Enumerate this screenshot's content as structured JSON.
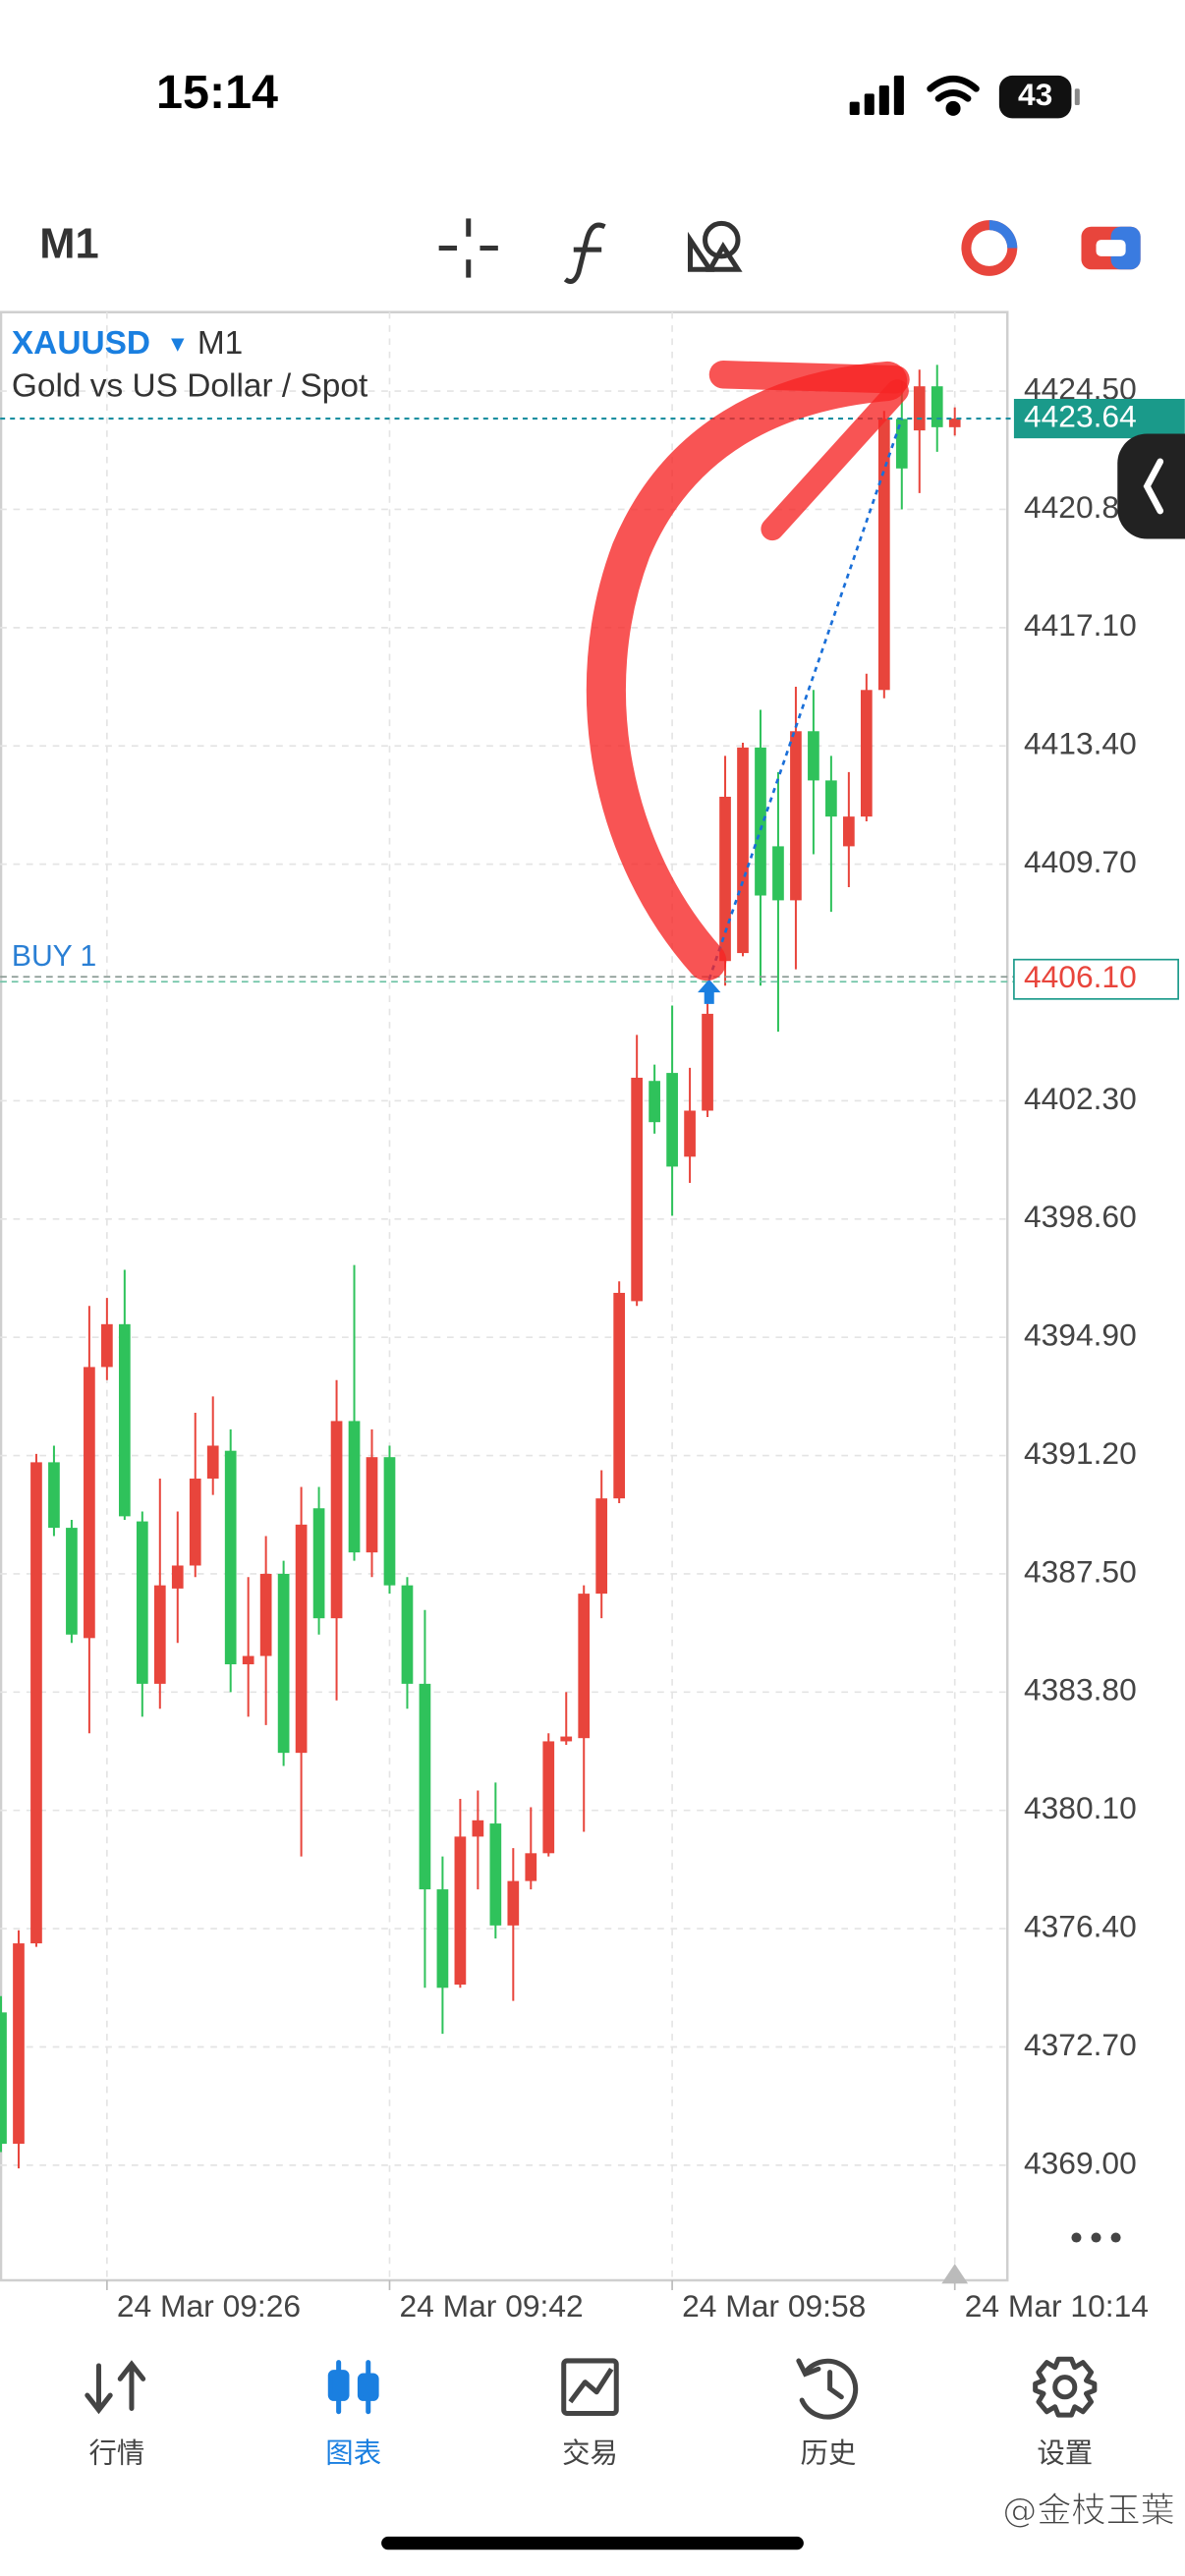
{
  "status_bar": {
    "time": "15:14",
    "battery": "43"
  },
  "toolbar": {
    "timeframe": "M1"
  },
  "chart_data": {
    "type": "candlestick",
    "symbol": "XAUUSD",
    "timeframe": "M1",
    "description": "Gold vs US Dollar / Spot",
    "categories": [
      null,
      null,
      null,
      null,
      null,
      null,
      "24 Mar 09:26",
      null,
      null,
      null,
      null,
      null,
      null,
      null,
      null,
      null,
      null,
      null,
      null,
      null,
      null,
      null,
      "24 Mar 09:42",
      null,
      null,
      null,
      null,
      null,
      null,
      null,
      null,
      null,
      null,
      null,
      null,
      null,
      null,
      null,
      "24 Mar 09:58",
      null,
      null,
      null,
      null,
      null,
      null,
      null,
      null,
      null,
      null,
      null,
      null,
      null,
      null,
      null,
      "24 Mar 10:14"
    ],
    "open": [
      4373.78,
      4369.67,
      4375.94,
      4390.99,
      4388.94,
      4385.49,
      4393.97,
      4395.31,
      4389.14,
      4384.06,
      4387.04,
      4387.76,
      4390.48,
      4391.35,
      4384.67,
      4384.93,
      4387.5,
      4381.9,
      4389.55,
      4386.11,
      4392.28,
      4388.17,
      4391.15,
      4387.14,
      4384.06,
      4377.63,
      4374.65,
      4379.28,
      4379.69,
      4376.5,
      4377.89,
      4378.76,
      4382.26,
      4382.36,
      4386.88,
      4389.86,
      4396.03,
      4402.92,
      4403.17,
      4400.55,
      4401.99,
      4406.67,
      4406.92,
      4413.35,
      4410.26,
      4408.57,
      4413.86,
      4412.32,
      4410.26,
      4411.19,
      4415.15,
      4423.63,
      4423.27,
      4424.65,
      4423.37
    ],
    "high": [
      4374.29,
      4376.35,
      4391.25,
      4391.51,
      4389.19,
      4395.88,
      4396.13,
      4397.01,
      4389.45,
      4390.48,
      4389.45,
      4392.54,
      4393.05,
      4392.02,
      4387.4,
      4388.68,
      4387.91,
      4390.22,
      4390.22,
      4393.56,
      4397.16,
      4392.02,
      4391.51,
      4387.4,
      4386.37,
      4378.66,
      4380.46,
      4380.72,
      4380.97,
      4378.92,
      4380.2,
      4382.51,
      4383.8,
      4387.14,
      4390.74,
      4396.65,
      4404.36,
      4403.43,
      4405.28,
      4403.33,
      4405.64,
      4413.09,
      4413.5,
      4414.53,
      4412.58,
      4415.25,
      4415.15,
      4413.09,
      4412.58,
      4415.66,
      4423.88,
      4424.81,
      4425.17,
      4425.32,
      4423.99
    ],
    "low": [
      4369.41,
      4368.9,
      4375.83,
      4388.68,
      4385.34,
      4382.51,
      4393.56,
      4389.19,
      4383.03,
      4383.28,
      4385.34,
      4387.4,
      4389.97,
      4383.8,
      4383.03,
      4382.77,
      4381.49,
      4378.66,
      4385.6,
      4383.54,
      4387.91,
      4387.4,
      4386.88,
      4383.28,
      4374.55,
      4373.11,
      4374.55,
      4377.63,
      4376.09,
      4374.14,
      4377.63,
      4378.66,
      4382.15,
      4379.43,
      4386.11,
      4389.71,
      4395.88,
      4401.27,
      4398.7,
      4399.73,
      4401.79,
      4405.9,
      4406.82,
      4405.9,
      4404.46,
      4406.41,
      4410.01,
      4408.21,
      4408.98,
      4411.04,
      4414.89,
      4420.8,
      4421.31,
      4422.6,
      4423.11
    ],
    "close": [
      4369.67,
      4375.94,
      4390.99,
      4388.94,
      4385.6,
      4393.97,
      4395.31,
      4389.3,
      4384.06,
      4387.14,
      4387.76,
      4390.48,
      4391.51,
      4384.67,
      4384.93,
      4387.5,
      4381.9,
      4389.04,
      4386.11,
      4392.28,
      4388.17,
      4391.15,
      4387.14,
      4384.06,
      4377.63,
      4374.55,
      4379.28,
      4379.79,
      4376.5,
      4377.89,
      4378.76,
      4382.26,
      4382.41,
      4386.88,
      4389.86,
      4396.29,
      4403.02,
      4401.63,
      4400.24,
      4401.99,
      4405.02,
      4411.81,
      4413.35,
      4408.72,
      4408.57,
      4413.86,
      4412.32,
      4411.19,
      4411.19,
      4415.15,
      4423.63,
      4422.08,
      4424.65,
      4423.37,
      4423.64
    ],
    "up_color": "#e8453c",
    "down_color": "#2fc25b",
    "ylim": [
      4365.4,
      4426.97
    ],
    "yticks": [
      {
        "value": 4424.5,
        "label": "4424.50"
      },
      {
        "value": 4420.8,
        "label": "4420.80"
      },
      {
        "value": 4417.1,
        "label": "4417.10"
      },
      {
        "value": 4413.4,
        "label": "4413.40"
      },
      {
        "value": 4409.7,
        "label": "4409.70"
      },
      {
        "value": 4402.3,
        "label": "4402.30"
      },
      {
        "value": 4398.6,
        "label": "4398.60"
      },
      {
        "value": 4394.9,
        "label": "4394.90"
      },
      {
        "value": 4391.2,
        "label": "4391.20"
      },
      {
        "value": 4387.5,
        "label": "4387.50"
      },
      {
        "value": 4383.8,
        "label": "4383.80"
      },
      {
        "value": 4380.1,
        "label": "4380.10"
      },
      {
        "value": 4376.4,
        "label": "4376.40"
      },
      {
        "value": 4372.7,
        "label": "4372.70"
      },
      {
        "value": 4369,
        "label": "4369.00"
      }
    ],
    "grid": true,
    "bid": 4423.64,
    "position": {
      "label": "BUY 1",
      "price": {
        "value": 4406.1,
        "label": "4406.10"
      }
    }
  },
  "tab_bar": {
    "items": [
      {
        "label": "行情",
        "active": false
      },
      {
        "label": "图表",
        "active": true
      },
      {
        "label": "交易",
        "active": false
      },
      {
        "label": "历史",
        "active": false
      },
      {
        "label": "设置",
        "active": false
      }
    ]
  },
  "watermark": "@金枝玉葉"
}
